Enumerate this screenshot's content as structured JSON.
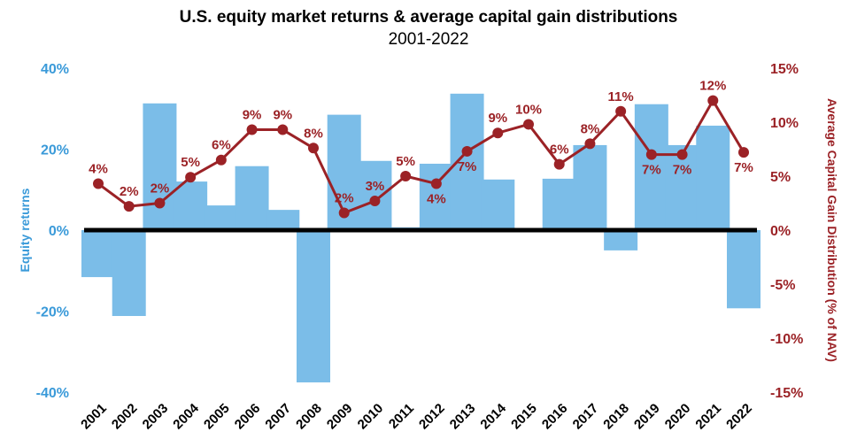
{
  "chart_data": {
    "type": "bar+line",
    "title": "U.S. equity market returns & average capital gain distributions",
    "subtitle": "2001-2022",
    "categories": [
      "2001",
      "2002",
      "2003",
      "2004",
      "2005",
      "2006",
      "2007",
      "2008",
      "2009",
      "2010",
      "2011",
      "2012",
      "2013",
      "2014",
      "2015",
      "2016",
      "2017",
      "2018",
      "2019",
      "2020",
      "2021",
      "2022"
    ],
    "series": [
      {
        "name": "Equity returns",
        "type": "bar",
        "axis": "left",
        "color": "#7bbde8",
        "values": [
          -11.6,
          -21.2,
          31.3,
          12.0,
          6.1,
          15.8,
          5.0,
          -37.6,
          28.5,
          17.1,
          0.7,
          16.4,
          33.7,
          12.5,
          0.0,
          12.7,
          21.0,
          -5.0,
          31.1,
          21.0,
          25.8,
          -19.3
        ]
      },
      {
        "name": "Average Capital Gain Distribution (% of NAV)",
        "type": "line",
        "axis": "right",
        "color": "#9b2226",
        "values": [
          4.3,
          2.2,
          2.5,
          4.9,
          6.5,
          9.3,
          9.3,
          7.6,
          1.6,
          2.7,
          5.0,
          4.3,
          7.3,
          9.0,
          9.8,
          6.1,
          8.0,
          11.0,
          7.0,
          7.0,
          12.0,
          7.2
        ],
        "labels": [
          "4%",
          "2%",
          "2%",
          "5%",
          "6%",
          "9%",
          "9%",
          "8%",
          "2%",
          "3%",
          "5%",
          "4%",
          "7%",
          "9%",
          "10%",
          "6%",
          "8%",
          "11%",
          "7%",
          "7%",
          "12%",
          "7%"
        ],
        "label_position": [
          "above",
          "above",
          "above",
          "above",
          "above",
          "above",
          "above",
          "above",
          "above",
          "above",
          "above",
          "below",
          "below",
          "above",
          "above",
          "above",
          "above",
          "above",
          "below",
          "below",
          "above",
          "below"
        ]
      }
    ],
    "left_axis": {
      "label": "Equity returns",
      "ylim": [
        -40,
        40
      ],
      "ticks": [
        40,
        20,
        0,
        -20,
        -40
      ],
      "tick_labels": [
        "40%",
        "20%",
        "0%",
        "-20%",
        "-40%"
      ],
      "color": "#3a9ad9"
    },
    "right_axis": {
      "label": "Average Capital Gain Distribution (% of NAV)",
      "ylim": [
        -15,
        15
      ],
      "ticks": [
        15,
        10,
        5,
        0,
        -5,
        -10,
        -15
      ],
      "tick_labels": [
        "15%",
        "10%",
        "5%",
        "0%",
        "-5%",
        "-10%",
        "-15%"
      ],
      "color": "#9b2226"
    },
    "grid": false,
    "legend": "none"
  }
}
